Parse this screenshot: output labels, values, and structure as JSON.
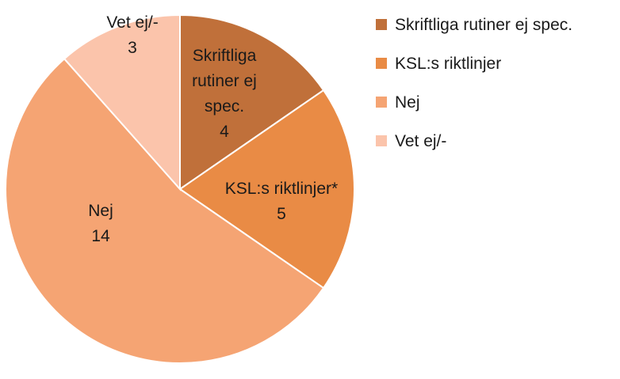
{
  "chart_data": {
    "type": "pie",
    "categories": [
      "Skriftliga rutiner ej spec.",
      "KSL:s riktlinjer",
      "Nej",
      "Vet ej/-"
    ],
    "values": [
      4,
      5,
      14,
      3
    ],
    "colors": [
      "#c0703a",
      "#e98b45",
      "#f5a473",
      "#fbc4ab"
    ],
    "slice_labels": [
      {
        "lines": [
          "Skriftliga",
          "rutiner ej",
          "spec."
        ],
        "value": "4"
      },
      {
        "lines": [
          "KSL:s riktlinjer*"
        ],
        "value": "5"
      },
      {
        "lines": [
          "Nej"
        ],
        "value": "14"
      },
      {
        "lines": [
          "Vet ej/-"
        ],
        "value": "3"
      }
    ],
    "legend": {
      "placement": "right",
      "entries": [
        "Skriftliga rutiner ej spec.",
        "KSL:s riktlinjer",
        "Nej",
        "Vet ej/-"
      ]
    }
  }
}
